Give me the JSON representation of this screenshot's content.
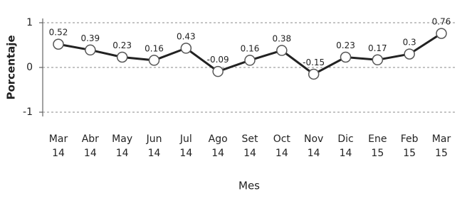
{
  "chart_data": {
    "type": "line",
    "x_label": "Mes",
    "y_label": "Porcentaje",
    "categories": [
      "Mar 14",
      "Abr 14",
      "May 14",
      "Jun 14",
      "Jul 14",
      "Ago 14",
      "Set 14",
      "Oct 14",
      "Nov 14",
      "Dic 14",
      "Ene 15",
      "Feb 15",
      "Mar 15"
    ],
    "values": [
      0.52,
      0.39,
      0.23,
      0.16,
      0.43,
      -0.09,
      0.16,
      0.38,
      -0.15,
      0.23,
      0.17,
      0.3,
      0.76
    ],
    "color": "#222222",
    "ylim": [
      -1,
      1
    ],
    "yticks": [
      -1,
      0,
      1
    ],
    "grid": true
  }
}
